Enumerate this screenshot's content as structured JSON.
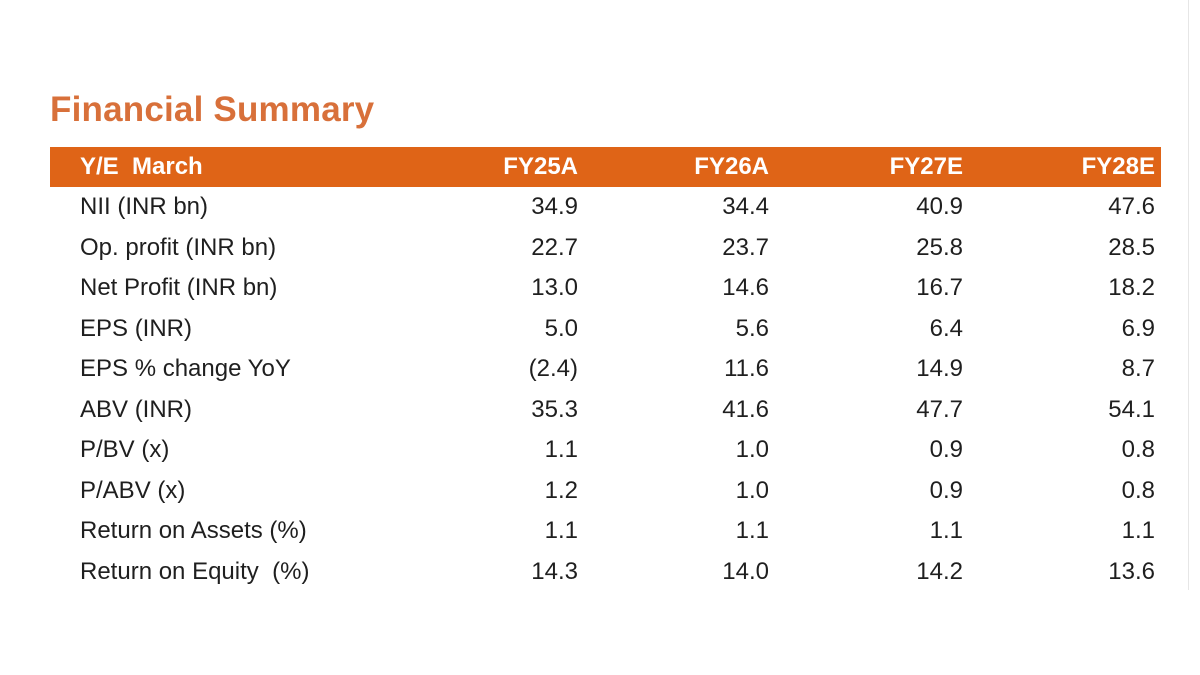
{
  "title": "Financial Summary",
  "table": {
    "header": {
      "label": "Y/E  March",
      "columns": [
        "FY25A",
        "FY26A",
        "FY27E",
        "FY28E"
      ]
    },
    "rows": [
      {
        "label": "NII (INR bn)",
        "values": [
          "34.9",
          "34.4",
          "40.9",
          "47.6"
        ]
      },
      {
        "label": "Op. profit (INR bn)",
        "values": [
          "22.7",
          "23.7",
          "25.8",
          "28.5"
        ]
      },
      {
        "label": "Net Profit (INR bn)",
        "values": [
          "13.0",
          "14.6",
          "16.7",
          "18.2"
        ]
      },
      {
        "label": "EPS (INR)",
        "values": [
          "5.0",
          "5.6",
          "6.4",
          "6.9"
        ]
      },
      {
        "label": "EPS % change YoY",
        "values": [
          "(2.4)",
          "11.6",
          "14.9",
          "8.7"
        ]
      },
      {
        "label": "ABV (INR)",
        "values": [
          "35.3",
          "41.6",
          "47.7",
          "54.1"
        ]
      },
      {
        "label": "P/BV (x)",
        "values": [
          "1.1",
          "1.0",
          "0.9",
          "0.8"
        ]
      },
      {
        "label": "P/ABV (x)",
        "values": [
          "1.2",
          "1.0",
          "0.9",
          "0.8"
        ]
      },
      {
        "label": "Return on Assets (%)",
        "values": [
          "1.1",
          "1.1",
          "1.1",
          "1.1"
        ]
      },
      {
        "label": "Return on Equity  (%)",
        "values": [
          "14.3",
          "14.0",
          "14.2",
          "13.6"
        ]
      }
    ]
  },
  "colors": {
    "title": "#d8703a",
    "header_bg": "#df6417",
    "header_text": "#ffffff",
    "body_text": "#1f1f1f"
  }
}
